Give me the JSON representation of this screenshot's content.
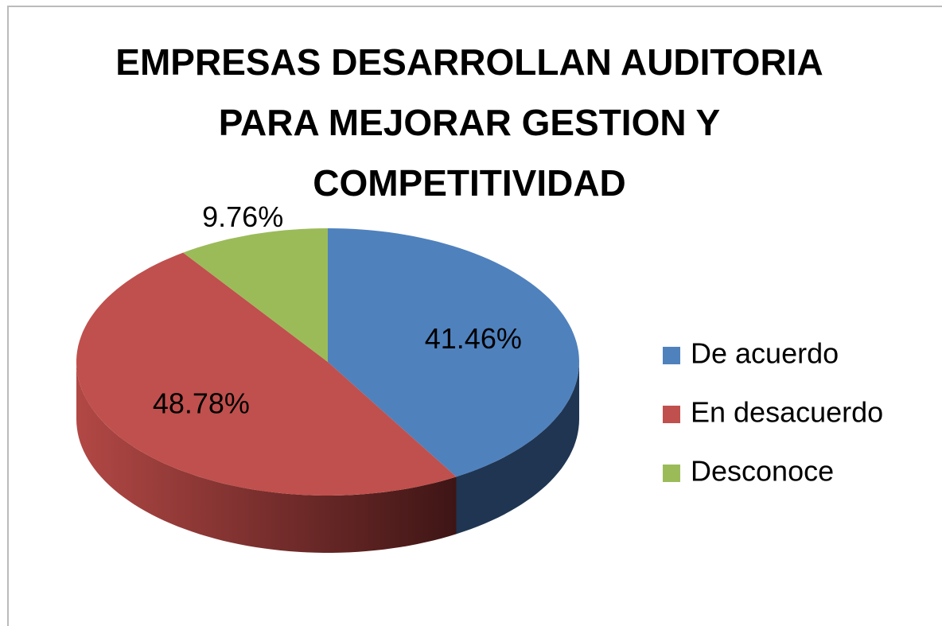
{
  "chart_data": {
    "type": "pie",
    "title": "EMPRESAS DESARROLLAN AUDITORIA PARA MEJORAR GESTION Y COMPETITIVIDAD",
    "categories": [
      "De acuerdo",
      "En desacuerdo",
      "Desconoce"
    ],
    "values": [
      41.46,
      48.78,
      9.76
    ],
    "value_labels": [
      "41.46%",
      "48.78%",
      "9.76%"
    ],
    "colors": [
      "#4f81bd",
      "#c0504d",
      "#9bbb59"
    ],
    "legend": "right"
  }
}
